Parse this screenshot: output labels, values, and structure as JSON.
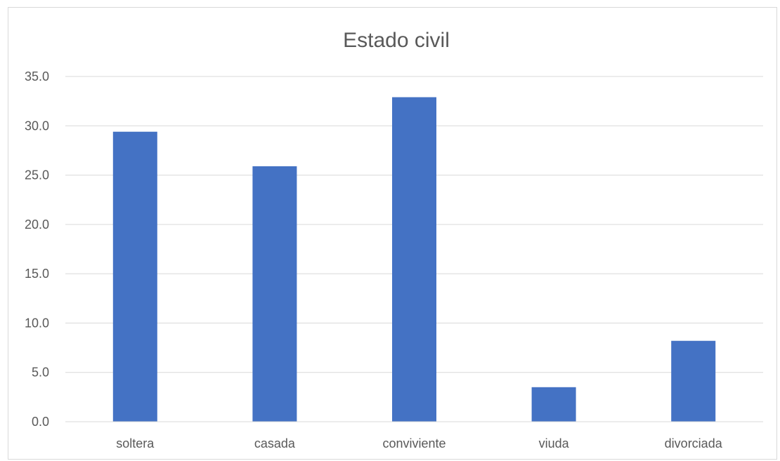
{
  "chart_data": {
    "type": "bar",
    "title": "Estado civil",
    "xlabel": "",
    "ylabel": "",
    "categories": [
      "soltera",
      "casada",
      "conviviente",
      "viuda",
      "divorciada"
    ],
    "values": [
      29.4,
      25.9,
      32.9,
      3.5,
      8.2
    ],
    "ylim": [
      0,
      35
    ],
    "yticks": [
      "0.0",
      "5.0",
      "10.0",
      "15.0",
      "20.0",
      "25.0",
      "30.0",
      "35.0"
    ],
    "grid": true,
    "legend": "none",
    "bar_color": "#4472C4"
  }
}
